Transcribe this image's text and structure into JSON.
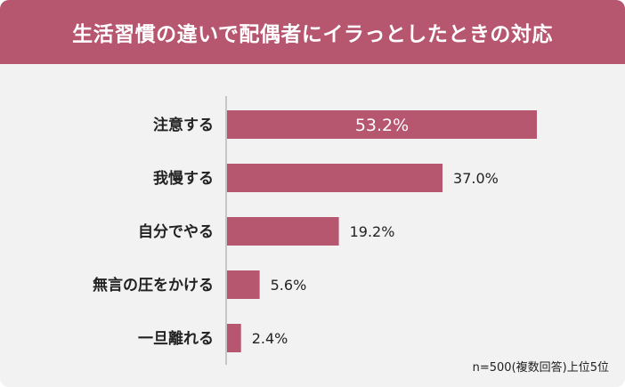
{
  "chart_data": {
    "type": "bar",
    "orientation": "horizontal",
    "title": "生活習慣の違いで配偶者にイラっとしたときの対応",
    "categories": [
      "注意する",
      "我慢する",
      "自分でやる",
      "無言の圧をかける",
      "一旦離れる"
    ],
    "values": [
      53.2,
      37.0,
      19.2,
      5.6,
      2.4
    ],
    "value_labels": [
      "53.2%",
      "37.0%",
      "19.2%",
      "5.6%",
      "2.4%"
    ],
    "unit": "%",
    "xlim": [
      0,
      60
    ],
    "grid": false,
    "bar_color": "#b6566f",
    "note": "n=500(複数回答)上位5位"
  },
  "colors": {
    "accent": "#b6566f",
    "background": "#f2f2f2",
    "title_text": "#ffffff",
    "text": "#222222"
  }
}
